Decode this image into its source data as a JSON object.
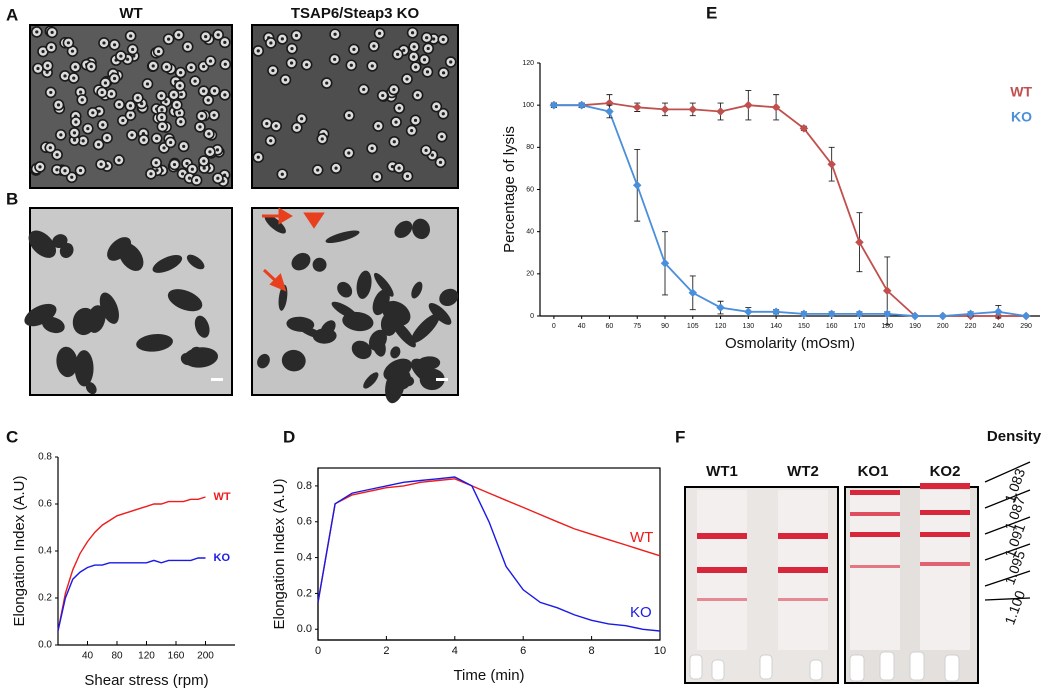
{
  "panel_labels": [
    "A",
    "B",
    "C",
    "D",
    "E",
    "F"
  ],
  "micrographs": {
    "columns": [
      "WT",
      "TSAP6/Steap3 KO"
    ]
  },
  "gradient": {
    "tubes": [
      "WT1",
      "WT2",
      "KO1",
      "KO2"
    ],
    "density_title": "Density",
    "densities": [
      "1.083",
      "1.087",
      "1.091",
      "1.095",
      "1.100"
    ]
  },
  "chart_data": [
    {
      "type": "line",
      "x_label": "Osmolarity (mOsm)",
      "y_label": "Percentage of lysis",
      "categories": [
        "0",
        "40",
        "60",
        "75",
        "90",
        "105",
        "120",
        "130",
        "140",
        "150",
        "160",
        "170",
        "180",
        "190",
        "200",
        "220",
        "240",
        "290"
      ],
      "ylim": [
        0,
        120
      ],
      "yticks": [
        0,
        20,
        40,
        60,
        80,
        100,
        120
      ],
      "legend": "upper right",
      "markers": true,
      "series": [
        {
          "name": "WT",
          "color": "#c0504d",
          "values": [
            100,
            100,
            101,
            99,
            98,
            98,
            97,
            100,
            99,
            89,
            72,
            35,
            12,
            0,
            0,
            0,
            0,
            0
          ],
          "errors": [
            1,
            1,
            4,
            2,
            3,
            3,
            4,
            7,
            6,
            1,
            8,
            14,
            16,
            0,
            0,
            0,
            0,
            0
          ]
        },
        {
          "name": "KO",
          "color": "#4a8fdc",
          "values": [
            100,
            100,
            97,
            62,
            25,
            11,
            4,
            2,
            2,
            1,
            1,
            1,
            1,
            0,
            0,
            1,
            2,
            0
          ],
          "errors": [
            1,
            1,
            3,
            17,
            15,
            8,
            3,
            2,
            1,
            1,
            1,
            1,
            1,
            0,
            0,
            1,
            3,
            0
          ]
        }
      ]
    },
    {
      "type": "line",
      "x_label": "Shear stress (rpm)",
      "y_label": "Elongation Index (A.U)",
      "x": [
        0,
        10,
        20,
        30,
        40,
        50,
        60,
        70,
        80,
        90,
        100,
        110,
        120,
        130,
        140,
        150,
        160,
        170,
        180,
        190,
        200
      ],
      "xlim": [
        0,
        240
      ],
      "xticks": [
        40,
        80,
        120,
        160,
        200
      ],
      "ylim": [
        0,
        0.8
      ],
      "yticks": [
        {
          "value": 0,
          "label": "0.0"
        },
        0.2,
        0.4,
        0.6,
        0.8
      ],
      "series": [
        {
          "name": "WT",
          "color": "#ee1c1c",
          "values": [
            0.06,
            0.22,
            0.32,
            0.39,
            0.44,
            0.48,
            0.51,
            0.53,
            0.55,
            0.56,
            0.57,
            0.58,
            0.59,
            0.6,
            0.6,
            0.61,
            0.61,
            0.61,
            0.62,
            0.62,
            0.63
          ]
        },
        {
          "name": "KO",
          "color": "#1a1ae6",
          "values": [
            0.06,
            0.2,
            0.28,
            0.31,
            0.33,
            0.34,
            0.34,
            0.35,
            0.35,
            0.35,
            0.35,
            0.35,
            0.35,
            0.36,
            0.35,
            0.36,
            0.36,
            0.36,
            0.36,
            0.37,
            0.37
          ]
        }
      ]
    },
    {
      "type": "line",
      "x_label": "Time (min)",
      "y_label": "Elongation Index (A.U)",
      "x": [
        0,
        0.5,
        1,
        1.5,
        2,
        2.5,
        3,
        3.5,
        4,
        4.5,
        5,
        5.5,
        6,
        6.5,
        7,
        7.5,
        8,
        8.5,
        9,
        9.5,
        10
      ],
      "xlim": [
        0,
        10
      ],
      "xticks": [
        0,
        2,
        4,
        6,
        8,
        10
      ],
      "ylim": [
        -0.06,
        0.9
      ],
      "yticks": [
        {
          "value": 0,
          "label": "0.0"
        },
        0.2,
        0.4,
        0.6,
        0.8
      ],
      "series": [
        {
          "name": "WT",
          "color": "#ee1c1c",
          "values": [
            0.15,
            0.7,
            0.75,
            0.77,
            0.79,
            0.8,
            0.82,
            0.83,
            0.84,
            0.8,
            0.76,
            0.72,
            0.68,
            0.64,
            0.6,
            0.56,
            0.53,
            0.5,
            0.47,
            0.44,
            0.41
          ]
        },
        {
          "name": "KO",
          "color": "#1a1ae6",
          "values": [
            0.15,
            0.7,
            0.76,
            0.78,
            0.8,
            0.82,
            0.83,
            0.84,
            0.85,
            0.8,
            0.6,
            0.35,
            0.22,
            0.15,
            0.12,
            0.08,
            0.05,
            0.03,
            0.02,
            0,
            -0.01
          ]
        }
      ]
    }
  ]
}
